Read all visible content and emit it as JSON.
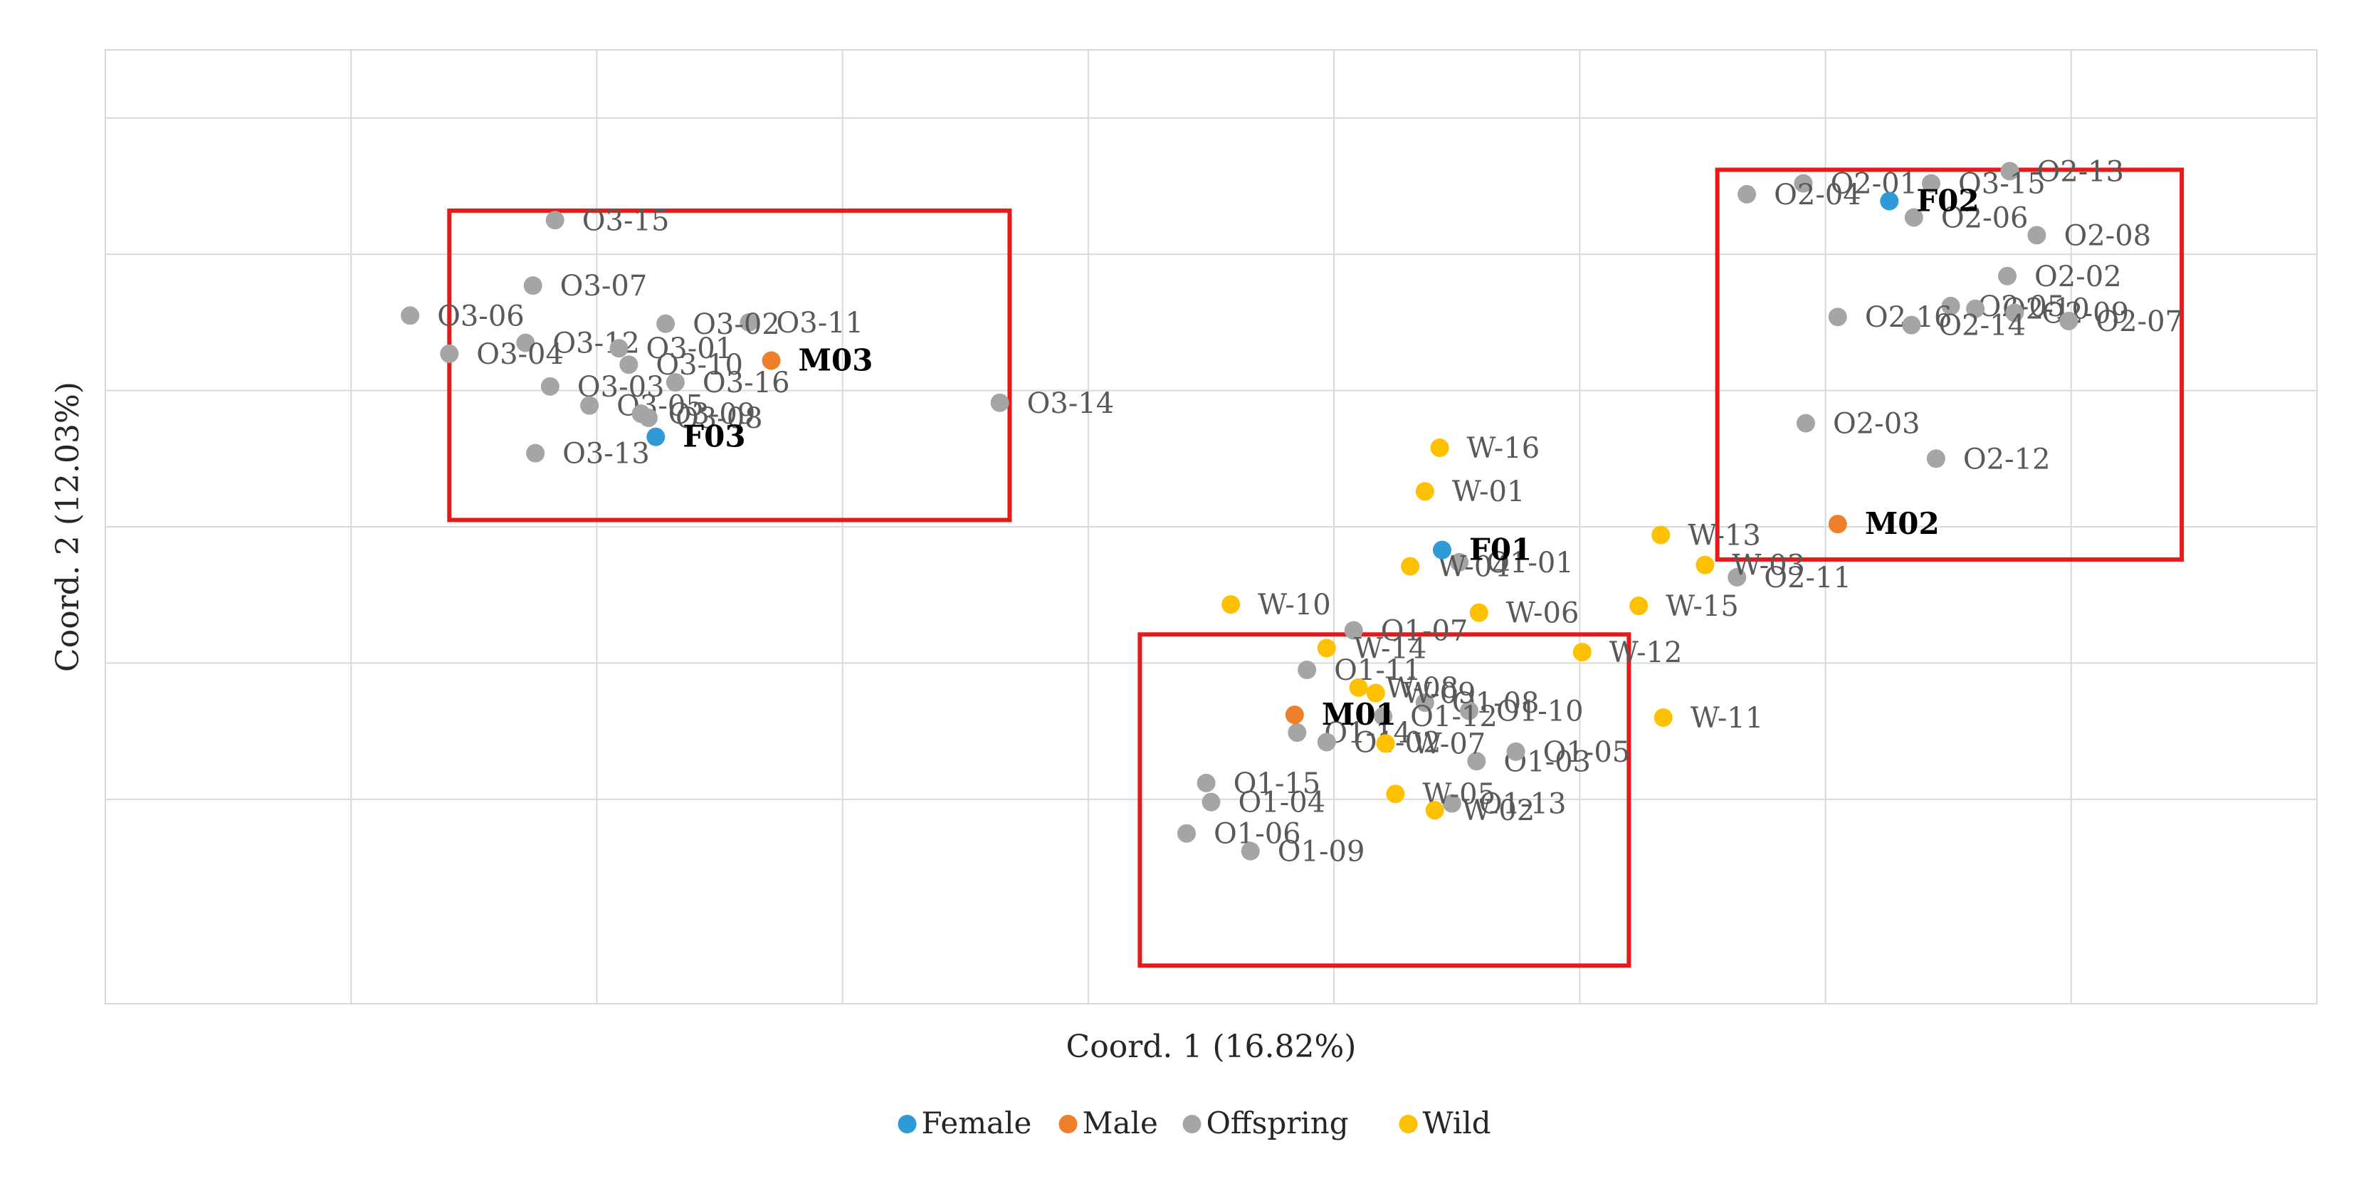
{
  "chart_data": {
    "type": "scatter",
    "title": "",
    "xlabel": "Coord. 1 (16.82%)",
    "ylabel": "Coord. 2 (12.03%)",
    "xlim": [
      -5,
      4
    ],
    "ylim": [
      -3.5,
      3.5
    ],
    "grid": true,
    "legend_position": "bottom",
    "colors": {
      "Female": "#2E9BD6",
      "Male": "#F07F2B",
      "Offspring": "#A5A5A5",
      "Wild": "#FFC000",
      "highlight_box": "#E51A1A"
    },
    "series": [
      {
        "name": "Female",
        "points": [
          {
            "label": "F02",
            "x": 2.26,
            "y": 2.39
          },
          {
            "label": "F03",
            "x": -2.76,
            "y": 0.66
          },
          {
            "label": "F01",
            "x": 0.44,
            "y": -0.17
          }
        ]
      },
      {
        "name": "Male",
        "points": [
          {
            "label": "M03",
            "x": -2.29,
            "y": 1.22
          },
          {
            "label": "M02",
            "x": 2.05,
            "y": 0.02
          },
          {
            "label": "M01",
            "x": -0.16,
            "y": -1.38
          }
        ]
      },
      {
        "name": "Offspring",
        "points": [
          {
            "label": "O2-13",
            "x": 2.75,
            "y": 2.61
          },
          {
            "label": "O2-01",
            "x": 1.91,
            "y": 2.52
          },
          {
            "label": "O3-15",
            "x": 2.43,
            "y": 2.52
          },
          {
            "label": "O2-04",
            "x": 1.68,
            "y": 2.44
          },
          {
            "label": "O2-06",
            "x": 2.36,
            "y": 2.27
          },
          {
            "label": "O2-08",
            "x": 2.86,
            "y": 2.14
          },
          {
            "label": "O2-02",
            "x": 2.74,
            "y": 1.84
          },
          {
            "label": "O2-05",
            "x": 2.51,
            "y": 1.62
          },
          {
            "label": "O2-10",
            "x": 2.61,
            "y": 1.6
          },
          {
            "label": "O2-09",
            "x": 2.77,
            "y": 1.57
          },
          {
            "label": "O2-16",
            "x": 2.05,
            "y": 1.54
          },
          {
            "label": "O2-14",
            "x": 2.35,
            "y": 1.48
          },
          {
            "label": "O2-07",
            "x": 2.99,
            "y": 1.51
          },
          {
            "label": "O2-03",
            "x": 1.92,
            "y": 0.76
          },
          {
            "label": "O2-12",
            "x": 2.45,
            "y": 0.5
          },
          {
            "label": "O2-11",
            "x": 1.64,
            "y": -0.37
          },
          {
            "label": "O3-15",
            "x": -3.17,
            "y": 2.25
          },
          {
            "label": "O3-07",
            "x": -3.26,
            "y": 1.77
          },
          {
            "label": "O3-11",
            "x": -2.38,
            "y": 1.5
          },
          {
            "label": "O3-02",
            "x": -2.72,
            "y": 1.49
          },
          {
            "label": "O3-06",
            "x": -3.76,
            "y": 1.55
          },
          {
            "label": "O3-12",
            "x": -3.29,
            "y": 1.35
          },
          {
            "label": "O3-04",
            "x": -3.6,
            "y": 1.27
          },
          {
            "label": "O3-01",
            "x": -2.91,
            "y": 1.31
          },
          {
            "label": "O3-10",
            "x": -2.87,
            "y": 1.19
          },
          {
            "label": "O3-16",
            "x": -2.68,
            "y": 1.06
          },
          {
            "label": "O3-03",
            "x": -3.19,
            "y": 1.03
          },
          {
            "label": "O3-05",
            "x": -3.03,
            "y": 0.89
          },
          {
            "label": "O3-09",
            "x": -2.82,
            "y": 0.83
          },
          {
            "label": "O3-08",
            "x": -2.79,
            "y": 0.8
          },
          {
            "label": "O3-14",
            "x": -1.36,
            "y": 0.91
          },
          {
            "label": "O3-13",
            "x": -3.25,
            "y": 0.54
          },
          {
            "label": "O1-07",
            "x": 0.08,
            "y": -0.76
          },
          {
            "label": "O1-01",
            "x": 0.51,
            "y": -0.26
          },
          {
            "label": "O1-11",
            "x": -0.11,
            "y": -1.05
          },
          {
            "label": "O1-08",
            "x": 0.37,
            "y": -1.29
          },
          {
            "label": "O1-10",
            "x": 0.55,
            "y": -1.35
          },
          {
            "label": "O1-12",
            "x": 0.2,
            "y": -1.39
          },
          {
            "label": "O1-14",
            "x": -0.15,
            "y": -1.51
          },
          {
            "label": "O1-02",
            "x": -0.03,
            "y": -1.58
          },
          {
            "label": "O1-03",
            "x": 0.58,
            "y": -1.72
          },
          {
            "label": "O1-05",
            "x": 0.74,
            "y": -1.65
          },
          {
            "label": "O1-15",
            "x": -0.52,
            "y": -1.88
          },
          {
            "label": "O1-04",
            "x": -0.5,
            "y": -2.02
          },
          {
            "label": "O1-13",
            "x": 0.48,
            "y": -2.03
          },
          {
            "label": "O1-06",
            "x": -0.6,
            "y": -2.25
          },
          {
            "label": "O1-09",
            "x": -0.34,
            "y": -2.38
          }
        ]
      },
      {
        "name": "Wild",
        "points": [
          {
            "label": "W-16",
            "x": 0.43,
            "y": 0.58
          },
          {
            "label": "W-01",
            "x": 0.37,
            "y": 0.26
          },
          {
            "label": "W-13",
            "x": 1.33,
            "y": -0.06
          },
          {
            "label": "W-03",
            "x": 1.51,
            "y": -0.28
          },
          {
            "label": "W-04",
            "x": 0.31,
            "y": -0.29
          },
          {
            "label": "W-10",
            "x": -0.42,
            "y": -0.57
          },
          {
            "label": "W-15",
            "x": 1.24,
            "y": -0.58
          },
          {
            "label": "W-06",
            "x": 0.59,
            "y": -0.63
          },
          {
            "label": "W-14",
            "x": -0.03,
            "y": -0.89
          },
          {
            "label": "W-12",
            "x": 1.01,
            "y": -0.92
          },
          {
            "label": "W-08",
            "x": 0.1,
            "y": -1.18
          },
          {
            "label": "W-09",
            "x": 0.17,
            "y": -1.22
          },
          {
            "label": "W-11",
            "x": 1.34,
            "y": -1.4
          },
          {
            "label": "W-07",
            "x": 0.21,
            "y": -1.59
          },
          {
            "label": "W-05",
            "x": 0.25,
            "y": -1.96
          },
          {
            "label": "W-02",
            "x": 0.41,
            "y": -2.08
          }
        ]
      }
    ],
    "highlight_boxes": [
      {
        "name": "group-3",
        "x_range": [
          -3.6,
          -1.32
        ],
        "y_range": [
          0.05,
          2.32
        ]
      },
      {
        "name": "group-2",
        "x_range": [
          1.56,
          3.45
        ],
        "y_range": [
          -0.24,
          2.62
        ]
      },
      {
        "name": "group-1",
        "x_range": [
          -0.79,
          1.2
        ],
        "y_range": [
          -3.22,
          -0.79
        ]
      }
    ]
  }
}
